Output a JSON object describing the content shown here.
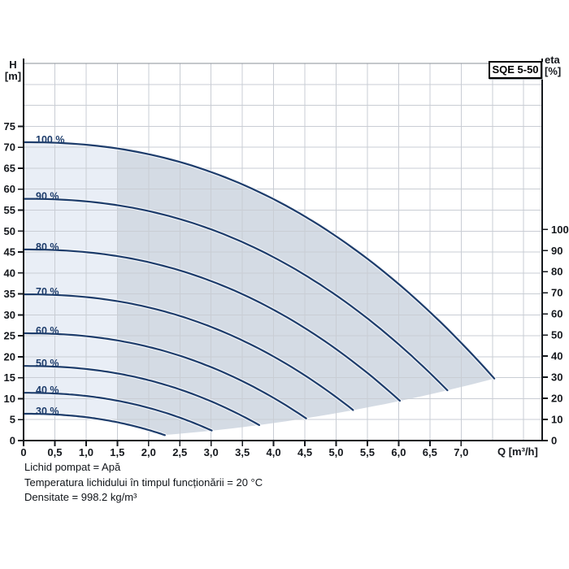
{
  "title_box": "SQE 5-50",
  "axes": {
    "left": {
      "title_line1": "H",
      "title_line2": "[m]",
      "ticks": [
        75,
        70,
        65,
        60,
        55,
        50,
        45,
        40,
        35,
        30,
        25,
        20,
        15,
        10,
        5,
        0
      ]
    },
    "right": {
      "title_line1": "eta",
      "title_line2": "[%]",
      "ticks": [
        100,
        90,
        80,
        70,
        60,
        50,
        40,
        30,
        20,
        10,
        0
      ]
    },
    "x": {
      "title": "Q [m³/h]",
      "tick_labels": [
        "0",
        "0,5",
        "1,0",
        "1,5",
        "2,0",
        "2,5",
        "3,0",
        "3,5",
        "4,0",
        "4,5",
        "5,0",
        "5,5",
        "6,0",
        "6,5",
        "7,0"
      ]
    }
  },
  "chart_data": {
    "type": "line",
    "title": "SQE 5-50",
    "xlabel": "Q [m³/h]",
    "ylabel_left": "H [m]",
    "ylabel_right": "eta [%]",
    "xlim": [
      0,
      8.3
    ],
    "ylim_left": [
      0,
      90
    ],
    "ylim_right": [
      0,
      100
    ],
    "grid": true,
    "legend": "labels-on-curves",
    "curve_exponent": 2.25,
    "series": [
      {
        "name": "100 %",
        "speed_pct": 100,
        "h0": 71.2,
        "q_end": 7.53,
        "h_end": 14.8,
        "points": [
          [
            0,
            71.2
          ],
          [
            1,
            70.6
          ],
          [
            2,
            68.3
          ],
          [
            3,
            64.1
          ],
          [
            4,
            57.6
          ],
          [
            5,
            48.8
          ],
          [
            6,
            37.4
          ],
          [
            7,
            23.3
          ],
          [
            7.53,
            14.8
          ]
        ]
      },
      {
        "name": "90 %",
        "speed_pct": 90,
        "h0": 57.7,
        "q_end": 6.78,
        "h_end": 12.0,
        "points": [
          [
            0,
            57.7
          ],
          [
            1,
            57.1
          ],
          [
            2,
            54.8
          ],
          [
            3,
            50.4
          ],
          [
            4,
            43.8
          ],
          [
            5,
            34.7
          ],
          [
            6,
            23.0
          ],
          [
            6.78,
            12.0
          ]
        ]
      },
      {
        "name": "80 %",
        "speed_pct": 80,
        "h0": 45.6,
        "q_end": 6.02,
        "h_end": 9.5,
        "points": [
          [
            0,
            45.6
          ],
          [
            1,
            45.0
          ],
          [
            2,
            42.6
          ],
          [
            3,
            38.1
          ],
          [
            4,
            31.2
          ],
          [
            5,
            21.8
          ],
          [
            6.02,
            9.5
          ]
        ]
      },
      {
        "name": "70 %",
        "speed_pct": 70,
        "h0": 34.9,
        "q_end": 5.27,
        "h_end": 7.3,
        "points": [
          [
            0,
            34.9
          ],
          [
            1,
            34.2
          ],
          [
            2,
            31.8
          ],
          [
            3,
            27.1
          ],
          [
            4,
            20.1
          ],
          [
            5,
            10.4
          ],
          [
            5.27,
            7.3
          ]
        ]
      },
      {
        "name": "60 %",
        "speed_pct": 60,
        "h0": 25.6,
        "q_end": 4.52,
        "h_end": 5.3,
        "points": [
          [
            0,
            25.6
          ],
          [
            1,
            24.9
          ],
          [
            2,
            22.4
          ],
          [
            3,
            17.5
          ],
          [
            4,
            10.2
          ],
          [
            4.52,
            5.3
          ]
        ]
      },
      {
        "name": "50 %",
        "speed_pct": 50,
        "h0": 17.8,
        "q_end": 3.77,
        "h_end": 3.7,
        "points": [
          [
            0,
            17.8
          ],
          [
            1,
            17.1
          ],
          [
            2,
            14.4
          ],
          [
            3,
            9.4
          ],
          [
            3.77,
            3.7
          ]
        ]
      },
      {
        "name": "40 %",
        "speed_pct": 40,
        "h0": 11.4,
        "q_end": 3.01,
        "h_end": 2.4,
        "points": [
          [
            0,
            11.4
          ],
          [
            1,
            10.7
          ],
          [
            2,
            7.8
          ],
          [
            3.01,
            2.4
          ]
        ]
      },
      {
        "name": "30 %",
        "speed_pct": 30,
        "h0": 6.4,
        "q_end": 2.26,
        "h_end": 1.3,
        "points": [
          [
            0,
            6.4
          ],
          [
            1,
            5.6
          ],
          [
            2,
            2.5
          ],
          [
            2.26,
            1.3
          ]
        ]
      }
    ],
    "envelope": {
      "operating_split_q": 1.5,
      "tip": [
        7.53,
        14.8
      ]
    }
  },
  "colors": {
    "curve": "#1d3c6b",
    "fill_light": "#e9eef6",
    "fill_dark": "#d4dbe4",
    "grid": "#c9cdd4",
    "frame_top": "#8a9097",
    "axis": "#15181d",
    "text": "#15181d"
  },
  "footer": {
    "lines": [
      "Lichid pompat = Apă",
      "Temperatura lichidului în timpul funcționării = 20 °C",
      "Densitate = 998.2 kg/m³"
    ]
  }
}
